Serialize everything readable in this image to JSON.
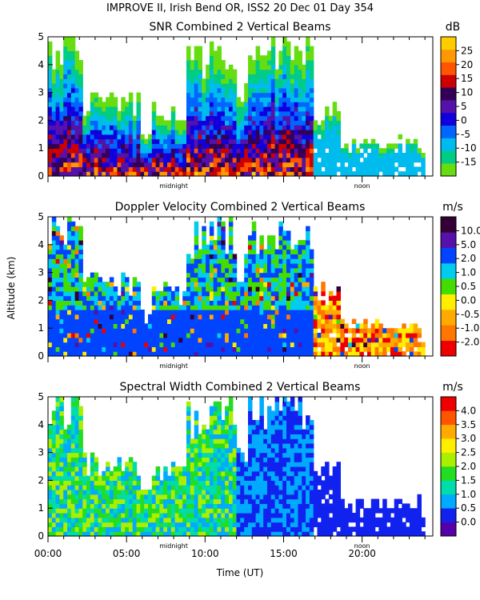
{
  "figure": {
    "title": "IMPROVE II,  Irish Bend OR, ISS2  20 Dec 01 Day 354",
    "xlabel": "Time (UT)",
    "ylabel": "Altitude (km)",
    "x_ticks": [
      "00:00",
      "05:00",
      "10:00",
      "15:00",
      "20:00"
    ],
    "x_tick_values": [
      0,
      5,
      10,
      15,
      20
    ],
    "time_markers": [
      {
        "label": "midnight",
        "hour": 8
      },
      {
        "label": "noon",
        "hour": 20
      }
    ]
  },
  "chart_data": [
    {
      "type": "heatmap",
      "title": "SNR Combined 2 Vertical Beams",
      "units": "dB",
      "xlim": [
        0,
        24.5
      ],
      "ylim": [
        0,
        5
      ],
      "y_ticks": [
        "0",
        "1",
        "2",
        "3",
        "4",
        "5"
      ],
      "colorbar_labels": [
        "-15",
        "-10",
        "-5",
        "0",
        "5",
        "10",
        "15",
        "20",
        "25"
      ],
      "colorbar_colors": [
        "#66dd11",
        "#00cc88",
        "#00bbee",
        "#0066ff",
        "#1100dd",
        "#5511aa",
        "#330055",
        "#cc0000",
        "#ff5500",
        "#ff9900",
        "#ffcc00"
      ]
    },
    {
      "type": "heatmap",
      "title": "Doppler Velocity Combined 2 Vertical Beams",
      "units": "m/s",
      "xlim": [
        0,
        24.5
      ],
      "ylim": [
        0,
        5
      ],
      "y_ticks": [
        "0",
        "1",
        "2",
        "3",
        "4",
        "5"
      ],
      "colorbar_labels": [
        "-2.0",
        "-1.0",
        "-0.5",
        "0.0",
        "0.5",
        "1.0",
        "2.0",
        "5.0",
        "10.0"
      ],
      "colorbar_colors": [
        "#ee0000",
        "#ff7700",
        "#ffaa00",
        "#ffee00",
        "#44dd00",
        "#00ccee",
        "#0044ff",
        "#5511aa",
        "#330033"
      ]
    },
    {
      "type": "heatmap",
      "title": "Spectral Width Combined 2 Vertical Beams",
      "units": "m/s",
      "xlim": [
        0,
        24.5
      ],
      "ylim": [
        0,
        5
      ],
      "y_ticks": [
        "0",
        "1",
        "2",
        "3",
        "4",
        "5"
      ],
      "colorbar_labels": [
        "0.0",
        "0.5",
        "1.0",
        "1.5",
        "2.0",
        "2.5",
        "3.0",
        "3.5",
        "4.0"
      ],
      "colorbar_colors": [
        "#5500aa",
        "#1122ee",
        "#00aaff",
        "#00ddaa",
        "#22dd22",
        "#aaee00",
        "#ffee00",
        "#ffaa00",
        "#ff5500",
        "#ee0000"
      ]
    }
  ]
}
